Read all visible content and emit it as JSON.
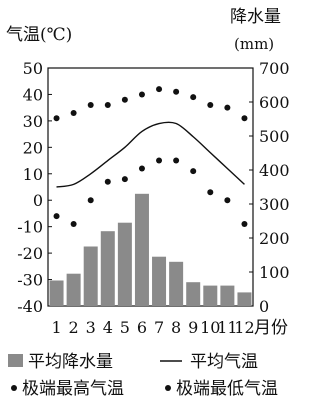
{
  "chart_data": {
    "type": "bar",
    "left_axis_title": "气温(℃)",
    "right_axis_title": "降水量",
    "right_axis_unit": "(mm)",
    "x_suffix": "月份",
    "x_ticks": [
      "1",
      "2",
      "3",
      "4",
      "5",
      "6",
      "7",
      "8",
      "9",
      "10",
      "11",
      "12"
    ],
    "y_left_ticks": [
      "50",
      "40",
      "30",
      "20",
      "10",
      "0",
      "-10",
      "-20",
      "-30",
      "-40"
    ],
    "y_left_range": [
      -40,
      50
    ],
    "y_right_ticks": [
      "700",
      "600",
      "500",
      "400",
      "300",
      "200",
      "100",
      "0"
    ],
    "y_right_range": [
      0,
      700
    ],
    "series": [
      {
        "name": "平均降水量",
        "kind": "bar",
        "axis": "right",
        "color": "#8a8a8a",
        "values": [
          75,
          95,
          175,
          220,
          245,
          330,
          145,
          130,
          70,
          60,
          60,
          40
        ]
      },
      {
        "name": "平均气温",
        "kind": "line",
        "axis": "left",
        "color": "#111111",
        "values": [
          5,
          6,
          10,
          15,
          20,
          26,
          29,
          29,
          24,
          18,
          12,
          6
        ]
      },
      {
        "name": "极端最高气温",
        "kind": "dots",
        "axis": "left",
        "color": "#111111",
        "values": [
          31,
          33,
          36,
          36,
          38,
          40,
          42,
          41,
          39,
          36,
          35,
          31
        ]
      },
      {
        "name": "极端最低气温",
        "kind": "dots",
        "axis": "left",
        "color": "#111111",
        "values": [
          -6,
          -9,
          0,
          7,
          8,
          12,
          15,
          15,
          11,
          3,
          0,
          -9
        ]
      }
    ],
    "legend": {
      "precip": "平均降水量",
      "avg_temp": "平均气温",
      "max_temp": "极端最高气温",
      "min_temp": "极端最低气温"
    }
  }
}
